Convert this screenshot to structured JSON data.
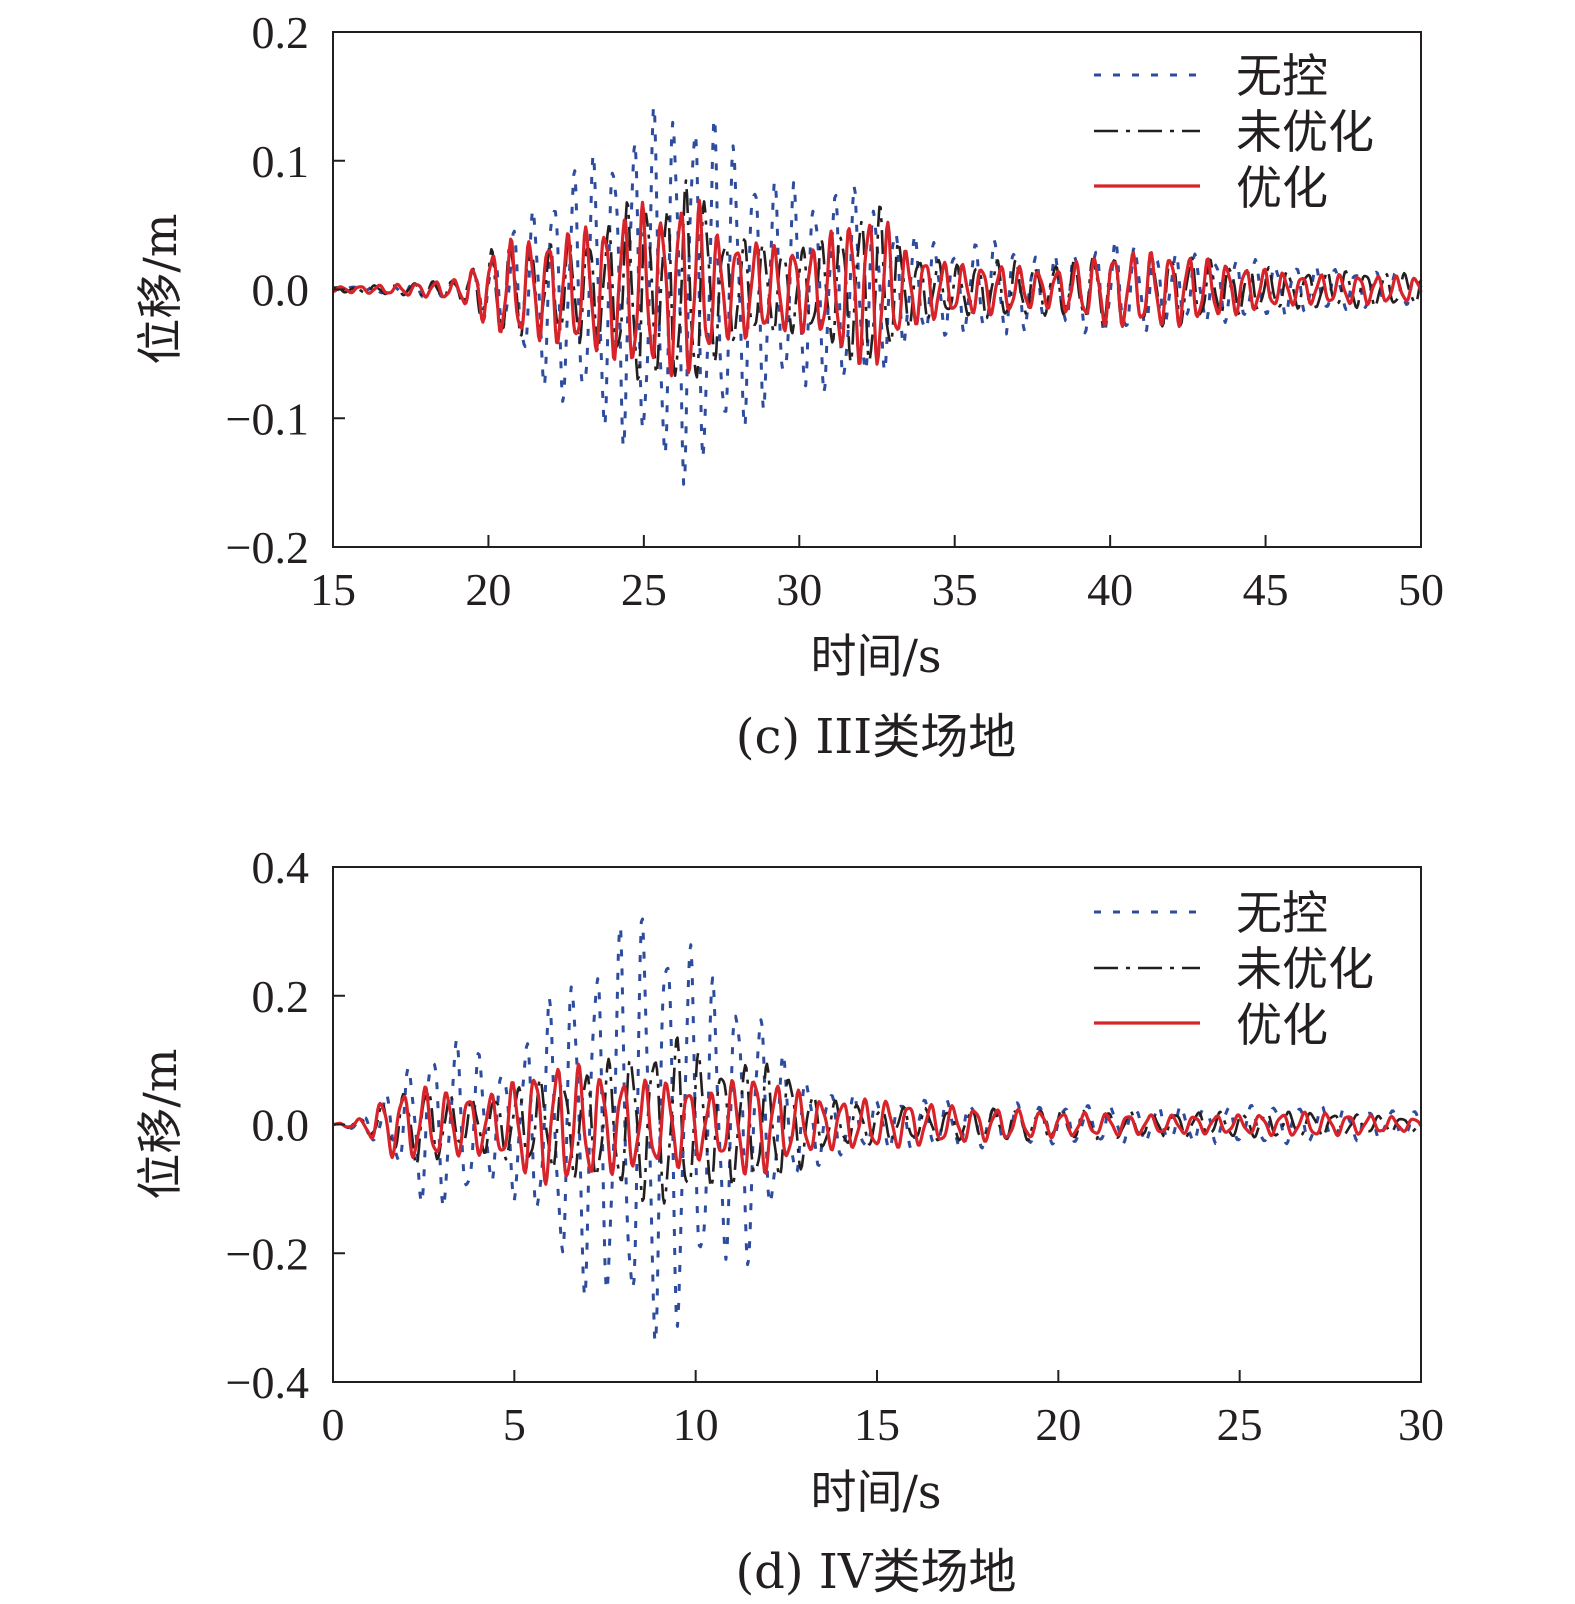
{
  "chart_data": [
    {
      "type": "line",
      "title": "(c) III类场地",
      "xlabel": "时间/s",
      "ylabel": "位移/m",
      "xlim": [
        15,
        50
      ],
      "ylim": [
        -0.2,
        0.2
      ],
      "xticks": [
        "15",
        "20",
        "25",
        "30",
        "35",
        "40",
        "45",
        "50"
      ],
      "yticks": [
        "0.2",
        "0.1",
        "0.0",
        "−0.1",
        "−0.2"
      ],
      "legend_position": "top-right",
      "series": [
        {
          "name": "无控",
          "style": "dotted",
          "color": "#2e4c9e",
          "x": [
            15,
            17,
            19,
            20.5,
            21.5,
            22.3,
            23.2,
            24,
            24.8,
            25.5,
            26.2,
            26.8,
            27.5,
            28.3,
            29.2,
            30.5,
            31.5,
            32.5,
            33.5,
            35,
            36.5,
            38,
            40,
            42,
            44,
            46,
            48,
            50
          ],
          "amp": [
            0.002,
            0.004,
            0.008,
            0.035,
            0.07,
            0.09,
            0.105,
            0.12,
            0.13,
            0.15,
            0.155,
            0.15,
            0.13,
            0.11,
            0.09,
            0.08,
            0.085,
            0.07,
            0.045,
            0.035,
            0.04,
            0.025,
            0.04,
            0.03,
            0.025,
            0.02,
            0.015,
            0.012
          ]
        },
        {
          "name": "未优化",
          "style": "dash-dot",
          "color": "#231f20",
          "x": [
            15,
            17,
            19,
            20.5,
            21.5,
            22.3,
            23.2,
            24,
            24.8,
            25.5,
            26.2,
            26.8,
            27.5,
            28.3,
            29.2,
            30.5,
            31.5,
            32.5,
            33.5,
            35,
            36.5,
            38,
            40,
            42,
            44,
            46,
            48,
            50
          ],
          "amp": [
            0.002,
            0.004,
            0.008,
            0.04,
            0.035,
            0.04,
            0.045,
            0.055,
            0.08,
            0.065,
            0.085,
            0.085,
            0.045,
            0.04,
            0.035,
            0.035,
            0.055,
            0.07,
            0.03,
            0.02,
            0.025,
            0.02,
            0.03,
            0.03,
            0.02,
            0.015,
            0.015,
            0.012
          ]
        },
        {
          "name": "优化",
          "style": "solid",
          "color": "#d7232a",
          "x": [
            15,
            17,
            19,
            20.5,
            21.5,
            22.3,
            23.2,
            24,
            24.8,
            25.5,
            26.2,
            26.8,
            27.5,
            28.3,
            29.2,
            30.5,
            31.5,
            32.5,
            33.5,
            35,
            36.5,
            38,
            40,
            42,
            44,
            46,
            48,
            50
          ],
          "amp": [
            0.002,
            0.004,
            0.008,
            0.04,
            0.04,
            0.045,
            0.05,
            0.055,
            0.07,
            0.06,
            0.075,
            0.07,
            0.04,
            0.04,
            0.035,
            0.035,
            0.055,
            0.065,
            0.03,
            0.02,
            0.02,
            0.015,
            0.03,
            0.03,
            0.02,
            0.012,
            0.012,
            0.01
          ]
        }
      ]
    },
    {
      "type": "line",
      "title": "(d) IV类场地",
      "xlabel": "时间/s",
      "ylabel": "位移/m",
      "xlim": [
        0,
        30
      ],
      "ylim": [
        -0.4,
        0.4
      ],
      "xticks": [
        "0",
        "5",
        "10",
        "15",
        "20",
        "25",
        "30"
      ],
      "yticks": [
        "0.4",
        "0.2",
        "0.0",
        "−0.2",
        "−0.4"
      ],
      "legend_position": "top-right",
      "series": [
        {
          "name": "无控",
          "style": "dotted",
          "color": "#2e4c9e",
          "x": [
            0,
            0.8,
            1.5,
            2.5,
            3.5,
            4.5,
            5.5,
            6.5,
            7.5,
            8.5,
            9,
            9.5,
            10.5,
            11.5,
            12.5,
            13.5,
            15,
            17,
            20,
            23,
            25,
            27,
            30
          ],
          "amp": [
            0,
            0.01,
            0.05,
            0.13,
            0.14,
            0.09,
            0.15,
            0.25,
            0.29,
            0.35,
            0.35,
            0.33,
            0.23,
            0.22,
            0.1,
            0.06,
            0.04,
            0.04,
            0.03,
            0.03,
            0.03,
            0.03,
            0.02
          ]
        },
        {
          "name": "未优化",
          "style": "dash-dot",
          "color": "#231f20",
          "x": [
            0,
            0.8,
            1.5,
            2.5,
            3.5,
            4.5,
            5.5,
            6.5,
            7.5,
            8.5,
            9,
            9.5,
            10.5,
            11.5,
            12.5,
            13.5,
            15,
            17,
            20,
            23,
            25,
            27,
            30
          ],
          "amp": [
            0,
            0.01,
            0.04,
            0.07,
            0.04,
            0.05,
            0.07,
            0.08,
            0.1,
            0.12,
            0.13,
            0.14,
            0.1,
            0.1,
            0.09,
            0.04,
            0.03,
            0.025,
            0.025,
            0.02,
            0.02,
            0.02,
            0.01
          ]
        },
        {
          "name": "优化",
          "style": "solid",
          "color": "#d7232a",
          "x": [
            0,
            0.8,
            1.5,
            2.5,
            3.5,
            4.5,
            5.5,
            6.5,
            7.5,
            8.5,
            9,
            9.5,
            10.5,
            11.5,
            12.5,
            13.5,
            15,
            17,
            20,
            23,
            25,
            27,
            30
          ],
          "amp": [
            0,
            0.01,
            0.05,
            0.06,
            0.05,
            0.05,
            0.09,
            0.1,
            0.08,
            0.07,
            0.07,
            0.07,
            0.05,
            0.09,
            0.06,
            0.04,
            0.04,
            0.03,
            0.02,
            0.015,
            0.015,
            0.02,
            0.01
          ]
        }
      ]
    }
  ]
}
